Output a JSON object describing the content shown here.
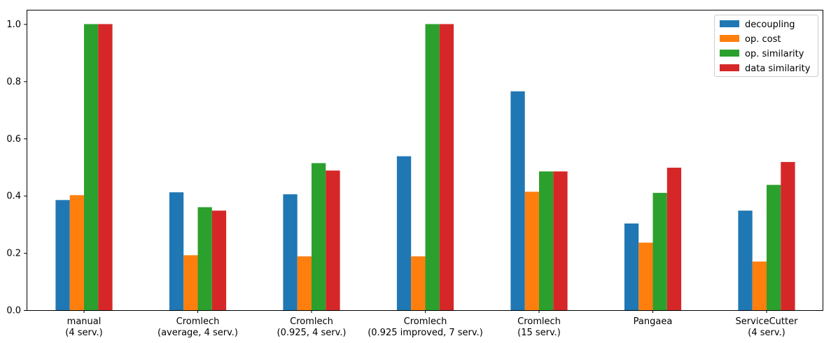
{
  "chart_data": {
    "type": "bar",
    "title": "",
    "xlabel": "",
    "ylabel": "",
    "ylim": [
      0,
      1.05
    ],
    "yticks": [
      "0.0",
      "0.2",
      "0.4",
      "0.6",
      "0.8",
      "1.0"
    ],
    "ytick_values": [
      0.0,
      0.2,
      0.4,
      0.6,
      0.8,
      1.0
    ],
    "categories": [
      [
        "manual",
        "(4 serv.)"
      ],
      [
        "Cromlech",
        "(average, 4 serv.)"
      ],
      [
        "Cromlech",
        "(0.925, 4 serv.)"
      ],
      [
        "Cromlech",
        "(0.925 improved, 7 serv.)"
      ],
      [
        "Cromlech",
        "(15 serv.)"
      ],
      [
        "Pangaea"
      ],
      [
        "ServiceCutter",
        "(4 serv.)"
      ]
    ],
    "series": [
      {
        "name": "decoupling",
        "color": "#1f77b4",
        "values": [
          0.385,
          0.412,
          0.405,
          0.538,
          0.765,
          0.303,
          0.348
        ]
      },
      {
        "name": "op. cost",
        "color": "#ff7f0e",
        "values": [
          0.402,
          0.192,
          0.188,
          0.188,
          0.414,
          0.236,
          0.17
        ]
      },
      {
        "name": "op. similarity",
        "color": "#2ca02c",
        "values": [
          1.0,
          0.36,
          0.514,
          1.0,
          0.485,
          0.41,
          0.438
        ]
      },
      {
        "name": "data similarity",
        "color": "#d62728",
        "values": [
          1.0,
          0.348,
          0.488,
          1.0,
          0.485,
          0.498,
          0.518
        ]
      }
    ],
    "legend_position": "top-right",
    "grid": false
  }
}
